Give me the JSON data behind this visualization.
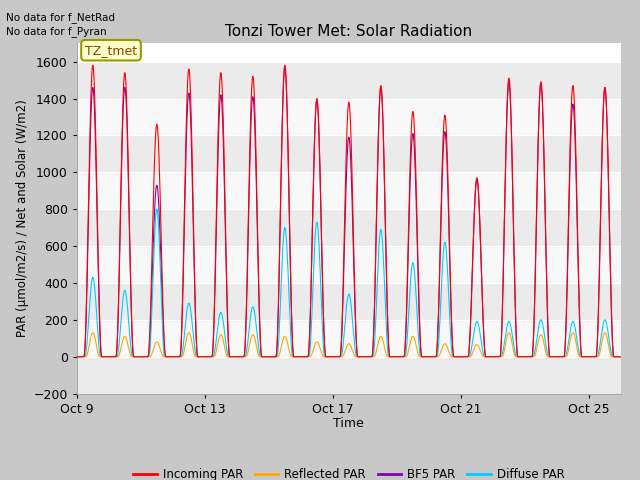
{
  "title": "Tonzi Tower Met: Solar Radiation",
  "xlabel": "Time",
  "ylabel": "PAR (μmol/m2/s) / Net and Solar (W/m2)",
  "ylim": [
    -200,
    1700
  ],
  "yticks": [
    -200,
    0,
    200,
    400,
    600,
    800,
    1000,
    1200,
    1400,
    1600
  ],
  "fig_bg_color": "#c8c8c8",
  "plot_bg_color": "#ffffff",
  "no_data_text": [
    "No data for f_NetRad",
    "No data for f_Pyran"
  ],
  "legend_label": "TZ_tmet",
  "legend_entries": [
    "Incoming PAR",
    "Reflected PAR",
    "BF5 PAR",
    "Diffuse PAR"
  ],
  "legend_colors": [
    "#ff0000",
    "#ffa500",
    "#8800aa",
    "#00ccff"
  ],
  "x_tick_days": [
    9,
    13,
    17,
    21,
    25
  ],
  "n_days": 17,
  "pts_per_day": 288,
  "incoming_peaks": [
    1580,
    1540,
    1260,
    1560,
    1540,
    1520,
    1580,
    1400,
    1380,
    1470,
    1330,
    1310,
    970,
    1510,
    1490,
    1470,
    1460
  ],
  "reflected_peaks": [
    130,
    110,
    80,
    130,
    120,
    120,
    110,
    80,
    70,
    110,
    110,
    70,
    65,
    130,
    120,
    130,
    130
  ],
  "bf5_peaks": [
    1460,
    1460,
    930,
    1430,
    1420,
    1410,
    1570,
    1390,
    1190,
    1460,
    1210,
    1220,
    960,
    1490,
    1480,
    1370,
    1460
  ],
  "diffuse_peaks": [
    430,
    360,
    800,
    290,
    240,
    270,
    700,
    730,
    340,
    690,
    510,
    620,
    190,
    190,
    200,
    190,
    200
  ],
  "colors": {
    "incoming": "#ff0000",
    "reflected": "#ffa500",
    "bf5": "#8800aa",
    "diffuse": "#00ccff"
  },
  "grid_color": "#dddddd",
  "band_colors": [
    "#e8e8e8",
    "#f5f5f5"
  ]
}
